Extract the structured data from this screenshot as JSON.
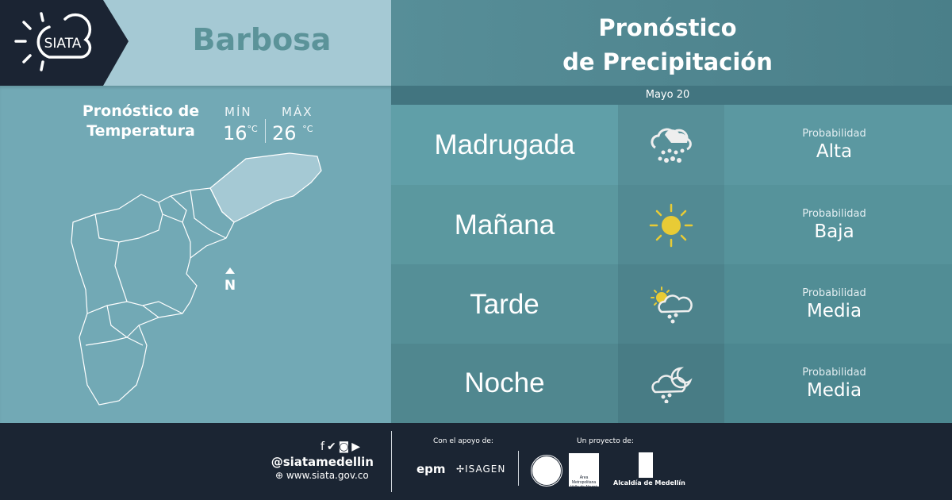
{
  "header": {
    "brand": "SIATA",
    "city": "Barbosa"
  },
  "temperature": {
    "title_line1": "Pronóstico de",
    "title_line2": "Temperatura",
    "min_label": "MÍN",
    "min_value": "16",
    "max_label": "MÁX",
    "max_value": "26",
    "unit": "°C"
  },
  "map": {
    "north_label": "N",
    "highlight_color": "#a5c9d4"
  },
  "forecast": {
    "title_line1": "Pronóstico",
    "title_line2": "de Precipitación",
    "date": "Mayo 20",
    "rows": [
      {
        "period": "Madrugada",
        "icon": "heavy-rain-cloud-icon",
        "prob_label": "Probabilidad",
        "prob_value": "Alta"
      },
      {
        "period": "Mañana",
        "icon": "sun-icon",
        "prob_label": "Probabilidad",
        "prob_value": "Baja"
      },
      {
        "period": "Tarde",
        "icon": "sun-cloud-rain-icon",
        "prob_label": "Probabilidad",
        "prob_value": "Media"
      },
      {
        "period": "Noche",
        "icon": "moon-cloud-rain-icon",
        "prob_label": "Probabilidad",
        "prob_value": "Media"
      }
    ]
  },
  "footer": {
    "handle": "@siatamedellin",
    "website": "www.siata.gov.co",
    "support_label": "Con el apoyo de:",
    "support_logos": [
      "epm",
      "ISAGEN"
    ],
    "project_label": "Un proyecto de:",
    "project_logos": [
      "Área Metropolitana Valle de Aburrá",
      "Alcaldía de Medellín"
    ],
    "social": [
      "facebook",
      "twitter",
      "instagram",
      "youtube"
    ]
  },
  "colors": {
    "dark": "#1b2533",
    "sun": "#e8cb35"
  }
}
